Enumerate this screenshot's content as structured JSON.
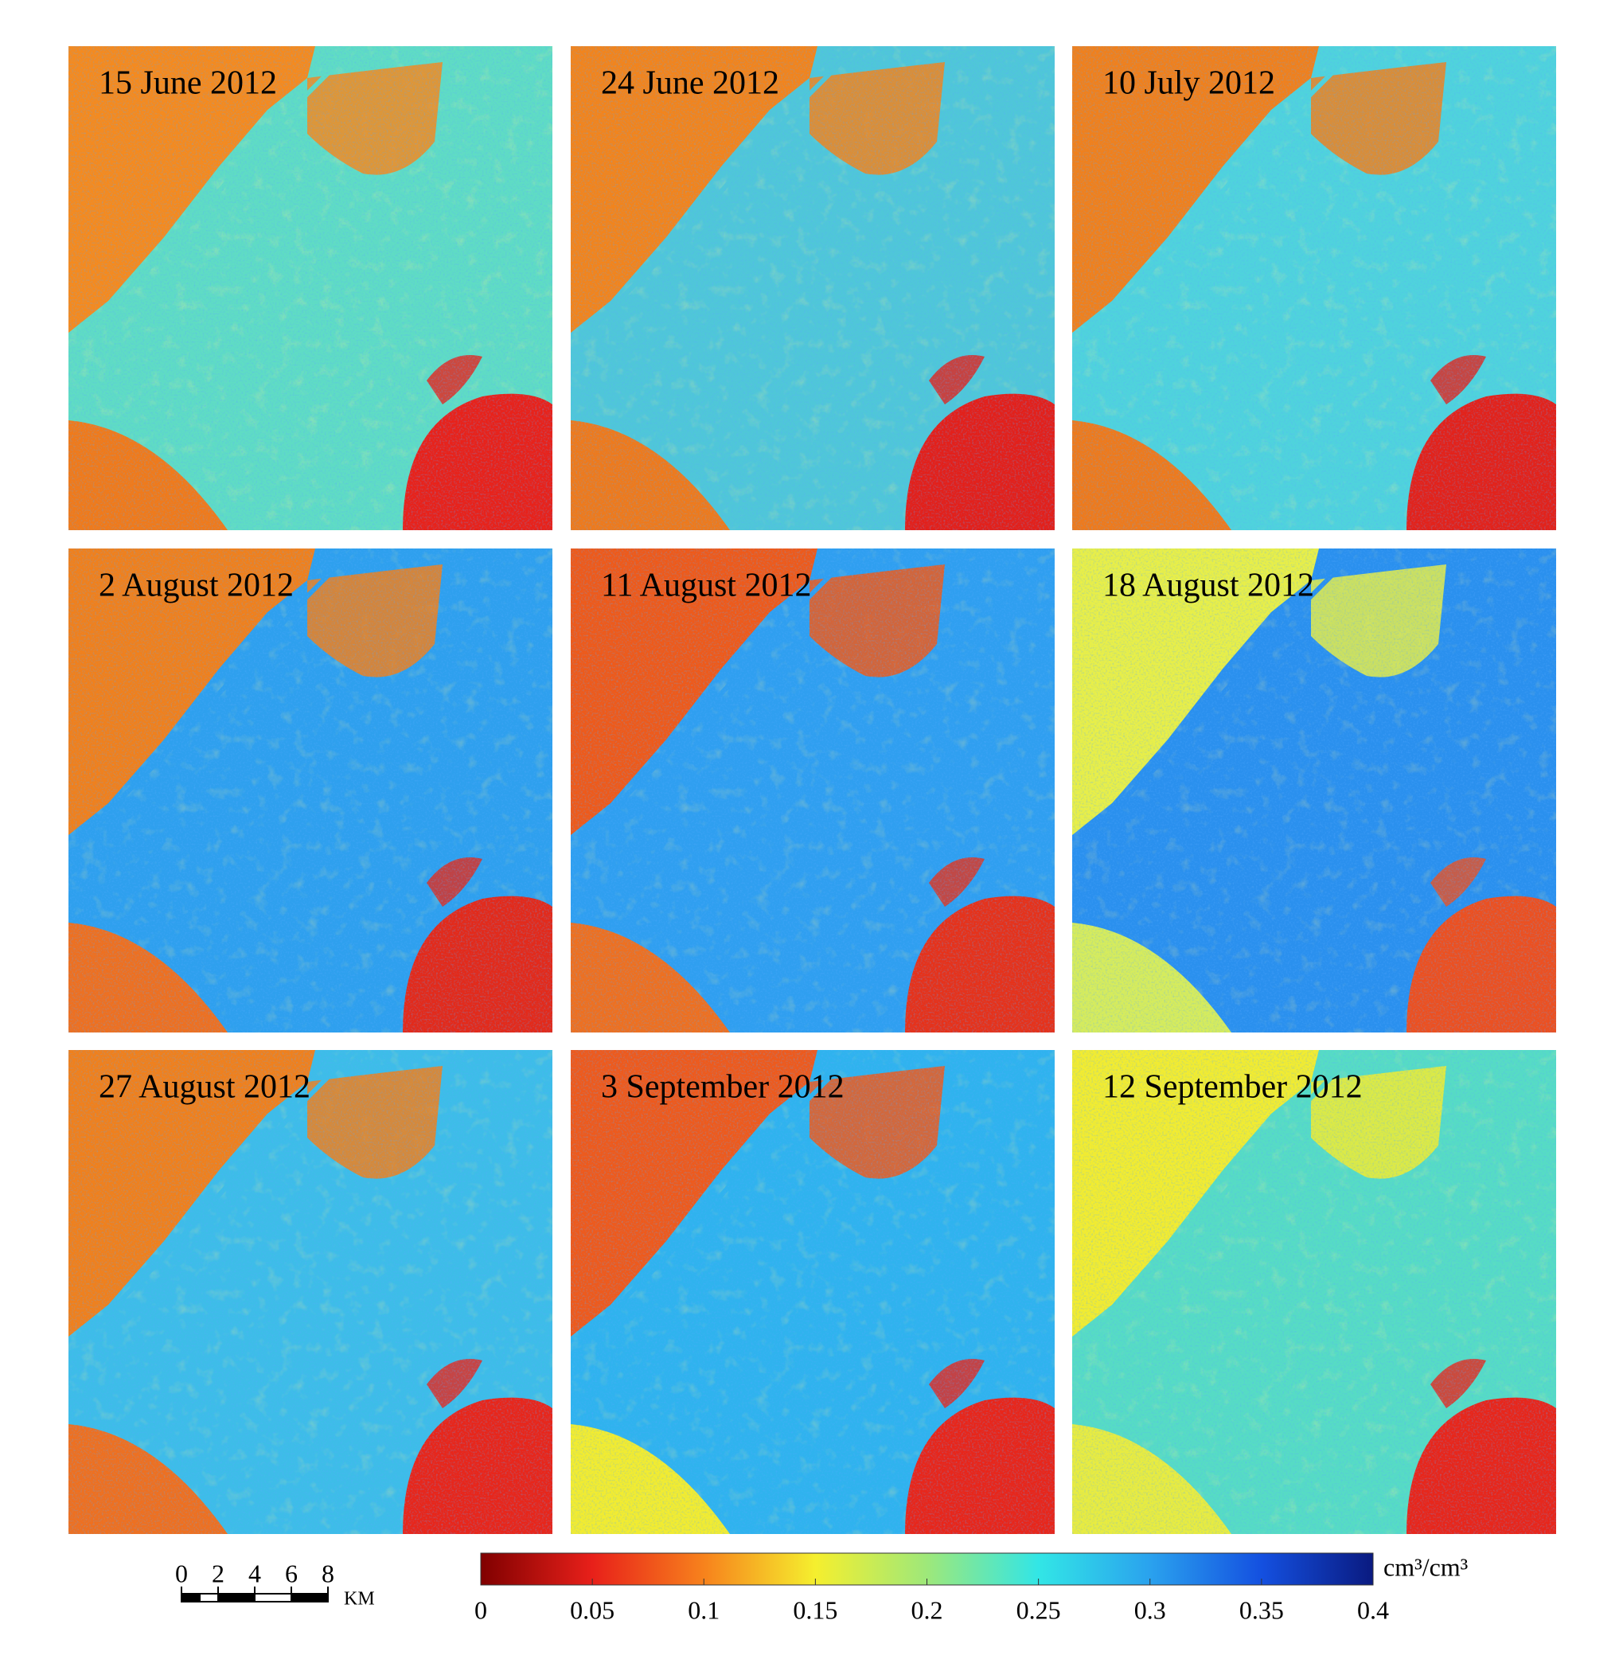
{
  "panels": [
    {
      "label": "15 June 2012",
      "colors": [
        "#5fdcc4",
        "#f58a1e",
        "#f07a1a",
        "#e8221a"
      ]
    },
    {
      "label": "24 June 2012",
      "colors": [
        "#4fc7d8",
        "#f2841c",
        "#ee7a1c",
        "#e3201a"
      ]
    },
    {
      "label": "10 July 2012",
      "colors": [
        "#4fd3dc",
        "#f0801c",
        "#ee7a1c",
        "#e3221a"
      ]
    },
    {
      "label": "2 August 2012",
      "colors": [
        "#2ea0ee",
        "#f0801c",
        "#ee7020",
        "#e32a1a"
      ]
    },
    {
      "label": "11 August 2012",
      "colors": [
        "#2f9ff0",
        "#ee5a1a",
        "#ee7020",
        "#e6321a"
      ]
    },
    {
      "label": "18 August 2012",
      "colors": [
        "#2a90ee",
        "#e8ef48",
        "#d6ec5c",
        "#ec5020"
      ]
    },
    {
      "label": "27 August 2012",
      "colors": [
        "#3dbde8",
        "#f0801c",
        "#ee7020",
        "#e8261a"
      ]
    },
    {
      "label": "3 September 2012",
      "colors": [
        "#2fb3ee",
        "#ee5a1c",
        "#f2ec30",
        "#e8261a"
      ]
    },
    {
      "label": "12 September 2012",
      "colors": [
        "#56dcc4",
        "#f2ec30",
        "#e8ec40",
        "#e8261a"
      ]
    }
  ],
  "colorbar": {
    "ticks": [
      0,
      0.05,
      0.1,
      0.15,
      0.2,
      0.25,
      0.3,
      0.35,
      0.4
    ],
    "unit": "cm³/cm³",
    "colormap": [
      "#800000",
      "#e8201a",
      "#f7821c",
      "#f5ef2e",
      "#9ee87a",
      "#32e6e6",
      "#2aa2ee",
      "#1450e0",
      "#0a1a80"
    ]
  },
  "scale_bar": {
    "ticks": [
      0,
      2,
      4,
      6,
      8
    ],
    "unit": "KM"
  }
}
